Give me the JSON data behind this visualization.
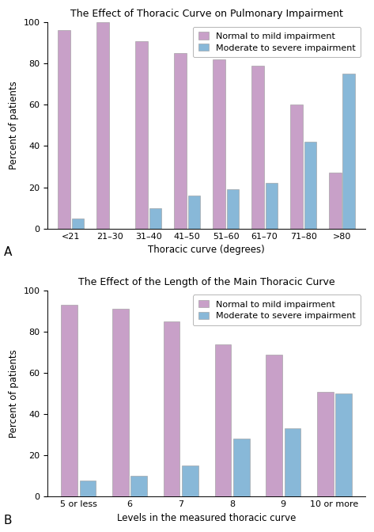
{
  "chart_A": {
    "title": "The Effect of Thoracic Curve on Pulmonary Impairment",
    "categories": [
      "<21",
      "21–30",
      "31–40",
      "41–50",
      "51–60",
      "61–70",
      "71–80",
      ">80"
    ],
    "normal_mild": [
      96,
      100,
      91,
      85,
      82,
      79,
      60,
      27
    ],
    "moderate_severe": [
      5,
      0,
      10,
      16,
      19,
      22,
      42,
      75
    ],
    "xlabel": "Thoracic curve (degrees)",
    "ylabel": "Percent of patients",
    "label": "A"
  },
  "chart_B": {
    "title": "The Effect of the Length of the Main Thoracic Curve",
    "categories": [
      "5 or less",
      "6",
      "7",
      "8",
      "9",
      "10 or more"
    ],
    "normal_mild": [
      93,
      91,
      85,
      74,
      69,
      51
    ],
    "moderate_severe": [
      8,
      10,
      15,
      28,
      33,
      50
    ],
    "xlabel": "Levels in the measured thoracic curve",
    "ylabel": "Percent of patients",
    "label": "B"
  },
  "color_normal_mild": "#c8a0c8",
  "color_moderate_severe": "#88b8d8",
  "legend_normal": "Normal to mild impairment",
  "legend_moderate": "Moderate to severe impairment",
  "ylim": [
    0,
    100
  ],
  "yticks": [
    0,
    20,
    40,
    60,
    80,
    100
  ],
  "bar_width": 0.32,
  "bar_gap": 0.04,
  "title_fontsize": 9,
  "axis_label_fontsize": 8.5,
  "tick_fontsize": 8,
  "legend_fontsize": 8,
  "background_color": "#ffffff"
}
